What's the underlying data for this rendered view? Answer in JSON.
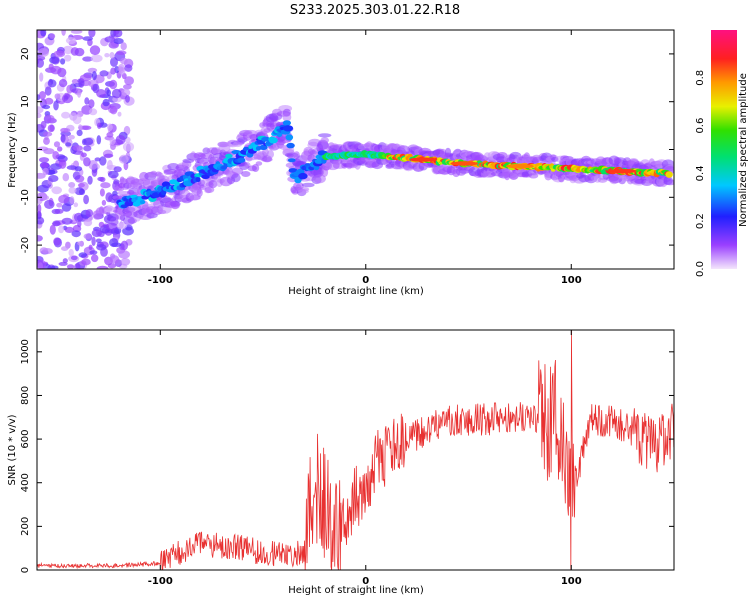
{
  "figure_title": "S233.2025.303.01.22.R18",
  "chart_data": [
    {
      "type": "heatmap",
      "title": "",
      "xlabel": "Height of straight line (km)",
      "ylabel": "Frequency (Hz)",
      "xlim": [
        -160,
        150
      ],
      "ylim": [
        -25,
        25
      ],
      "xticks": [
        -100,
        0,
        100
      ],
      "yticks": [
        -20,
        -10,
        0,
        10,
        20
      ],
      "colorbar": {
        "label": "Normalized spectral amplitude",
        "range": [
          0.0,
          1.0
        ],
        "ticks": [
          0.0,
          0.2,
          0.4,
          0.6,
          0.8
        ],
        "colormap": "rainbow"
      },
      "ridge": [
        {
          "x": -115,
          "y": -11
        },
        {
          "x": -95,
          "y": -8
        },
        {
          "x": -75,
          "y": -4
        },
        {
          "x": -55,
          "y": 0
        },
        {
          "x": -38,
          "y": 5
        },
        {
          "x": -35,
          "y": -6
        },
        {
          "x": -20,
          "y": -1.5
        },
        {
          "x": 0,
          "y": -1
        },
        {
          "x": 50,
          "y": -3
        },
        {
          "x": 100,
          "y": -4
        },
        {
          "x": 148,
          "y": -5
        }
      ]
    },
    {
      "type": "line",
      "title": "",
      "xlabel": "Height of straight line (km)",
      "ylabel": "SNR (10 * v/v)",
      "xlim": [
        -160,
        150
      ],
      "ylim": [
        0,
        1100
      ],
      "xticks": [
        -100,
        0,
        100
      ],
      "yticks": [
        0,
        200,
        400,
        600,
        800,
        1000
      ],
      "color": "#e83030",
      "series": [
        {
          "name": "SNR",
          "x": [
            -160,
            -140,
            -120,
            -100,
            -90,
            -80,
            -70,
            -60,
            -50,
            -40,
            -30,
            -25,
            -20,
            -15,
            -10,
            0,
            10,
            20,
            30,
            40,
            50,
            60,
            70,
            80,
            90,
            95,
            100,
            110,
            120,
            130,
            140,
            150
          ],
          "values": [
            20,
            20,
            20,
            30,
            80,
            120,
            110,
            100,
            80,
            70,
            80,
            400,
            300,
            150,
            250,
            420,
            530,
            590,
            650,
            680,
            690,
            690,
            700,
            690,
            650,
            700,
            350,
            690,
            680,
            640,
            560,
            650
          ]
        }
      ]
    }
  ]
}
